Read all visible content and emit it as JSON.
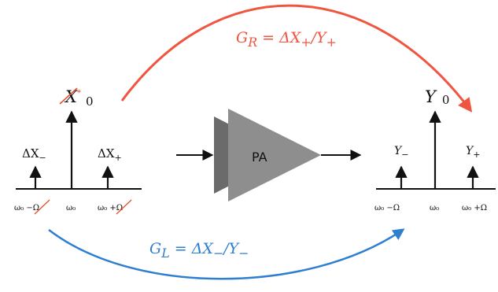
{
  "colors": {
    "gain_right": "#f05540",
    "gain_left": "#2f7fd0",
    "amp_front": "#8e8e8e",
    "amp_back": "#6b6b6b",
    "ink": "#111111",
    "strike": "#e4502f"
  },
  "labels": {
    "gain_right": "G<sub>R</sub> = ΔX<sub>+</sub>/Y<sub>+</sub>",
    "gain_left": "G<sub>L</sub> = ΔX<sub>−</sub>/Y<sub>−</sub>",
    "amplifier": "PA"
  },
  "input_spectrum": {
    "center_label": "X",
    "center_sub": "0",
    "center_sup": "*",
    "lower_label": "ΔX",
    "lower_sub": "−",
    "upper_label": "ΔX",
    "upper_sub": "+",
    "freq_lower": "ω₀ −Ω",
    "freq_center": "ω₀",
    "freq_upper": "ω₀ +Ω"
  },
  "output_spectrum": {
    "center_label": "Y",
    "center_sub": "0",
    "lower_label": "Y",
    "lower_sub": "−",
    "upper_label": "Y",
    "upper_sub": "+",
    "freq_lower": "ω₀ −Ω",
    "freq_center": "ω₀",
    "freq_upper": "ω₀ +Ω"
  }
}
